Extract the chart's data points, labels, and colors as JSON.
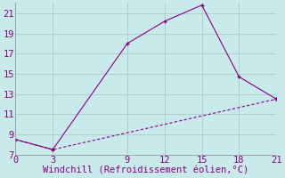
{
  "xlabel": "Windchill (Refroidissement éolien,°C)",
  "line1_x": [
    0,
    3,
    9,
    12,
    15,
    18,
    21
  ],
  "line1_y": [
    8.5,
    7.5,
    18.0,
    20.2,
    21.8,
    14.7,
    12.5
  ],
  "line2_x": [
    0,
    3,
    21
  ],
  "line2_y": [
    8.5,
    7.5,
    12.5
  ],
  "line_color": "#880088",
  "bg_color": "#c8eaea",
  "grid_color": "#aacccc",
  "text_color": "#880088",
  "xlim": [
    0,
    21
  ],
  "ylim": [
    7,
    22
  ],
  "xticks": [
    0,
    3,
    9,
    12,
    15,
    18,
    21
  ],
  "yticks": [
    7,
    9,
    11,
    13,
    15,
    17,
    19,
    21
  ],
  "font_size": 7.5,
  "marker_size": 3.5
}
